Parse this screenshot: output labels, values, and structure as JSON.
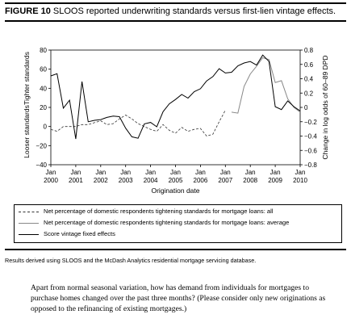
{
  "figure": {
    "label": "FIGURE 10",
    "title": "SLOOS reported underwriting standards versus first-lien vintage effects."
  },
  "chart_data": {
    "type": "line",
    "xlabel": "Origination date",
    "x_ticks": [
      "Jan\n2000",
      "Jan\n2001",
      "Jan\n2002",
      "Jan\n2003",
      "Jan\n2004",
      "Jan\n2005",
      "Jan\n2006",
      "Jan\n2007",
      "Jan\n2008",
      "Jan\n2009",
      "Jan\n2010"
    ],
    "xlim": [
      2000.0,
      2010.0
    ],
    "left_axis": {
      "label_lines": [
        "Looser standards",
        "Tighter standards"
      ],
      "ylim": [
        -40,
        80
      ],
      "ticks": [
        -40,
        -20,
        0,
        20,
        40,
        60,
        80
      ]
    },
    "right_axis": {
      "label": "Change in log odds of 60–89 DPD",
      "ylim": [
        -0.8,
        0.8
      ],
      "ticks": [
        "−0.8",
        "−0.6",
        "−0.4",
        "−0.2",
        "0",
        "0.2",
        "0.4",
        "0.6",
        "0.8"
      ],
      "tick_values": [
        -0.8,
        -0.6,
        -0.4,
        -0.2,
        0.0,
        0.2,
        0.4,
        0.6,
        0.8
      ]
    },
    "grid": false,
    "series": [
      {
        "name": "Net percentage of domestic respondents tightening standards for mortgage loans: all",
        "axis": "left",
        "style": "dashed",
        "color": "#333333",
        "x": [
          2000.0,
          2000.25,
          2000.5,
          2000.75,
          2001.0,
          2001.25,
          2001.5,
          2001.75,
          2002.0,
          2002.25,
          2002.5,
          2002.75,
          2003.0,
          2003.25,
          2003.5,
          2003.75,
          2004.0,
          2004.25,
          2004.5,
          2004.75,
          2005.0,
          2005.25,
          2005.5,
          2005.75,
          2006.0,
          2006.25,
          2006.5,
          2006.75,
          2007.0
        ],
        "y": [
          -3,
          -5,
          0,
          0,
          0,
          2,
          2,
          4,
          6,
          2,
          3,
          8,
          12,
          8,
          3,
          0,
          -3,
          -5,
          2,
          -4,
          -7,
          -1,
          -5,
          -3,
          -2,
          -10,
          -8,
          5,
          17
        ]
      },
      {
        "name": "Net percentage of domestic respondents tightening standards for mortgage loans: average",
        "axis": "left",
        "style": "solid",
        "color": "#888888",
        "x": [
          2007.25,
          2007.5,
          2007.75,
          2008.0,
          2008.25,
          2008.5,
          2008.75,
          2009.0,
          2009.25,
          2009.5,
          2009.75,
          2010.0
        ],
        "y": [
          15,
          14,
          42,
          55,
          63,
          72,
          70,
          46,
          48,
          29,
          20,
          15
        ]
      },
      {
        "name": "Score vintage fixed effects",
        "axis": "right",
        "style": "solid",
        "color": "#000000",
        "x": [
          2000.0,
          2000.25,
          2000.5,
          2000.75,
          2001.0,
          2001.25,
          2001.5,
          2001.75,
          2002.0,
          2002.25,
          2002.5,
          2002.75,
          2003.0,
          2003.25,
          2003.5,
          2003.75,
          2004.0,
          2004.25,
          2004.5,
          2004.75,
          2005.0,
          2005.25,
          2005.5,
          2005.75,
          2006.0,
          2006.25,
          2006.5,
          2006.75,
          2007.0,
          2007.25,
          2007.5,
          2007.75,
          2008.0,
          2008.25,
          2008.5,
          2008.75,
          2009.0,
          2009.25,
          2009.5,
          2009.75,
          2010.0
        ],
        "y": [
          0.44,
          0.47,
          -0.01,
          0.1,
          -0.44,
          0.36,
          -0.2,
          -0.18,
          -0.17,
          -0.14,
          -0.12,
          -0.13,
          -0.29,
          -0.41,
          -0.43,
          -0.23,
          -0.21,
          -0.27,
          -0.06,
          0.05,
          0.11,
          0.18,
          0.13,
          0.22,
          0.26,
          0.37,
          0.43,
          0.54,
          0.48,
          0.49,
          0.58,
          0.62,
          0.64,
          0.59,
          0.73,
          0.64,
          0.01,
          -0.03,
          0.09,
          0.01,
          -0.05
        ]
      }
    ]
  },
  "legend": {
    "items": [
      {
        "label": "Net percentage of domestic respondents tightening standards for mortgage loans: all",
        "style": "dashed",
        "color": "#333333"
      },
      {
        "label": "Net percentage of domestic respondents tightening standards for mortgage loans: average",
        "style": "solid",
        "color": "#888888"
      },
      {
        "label": "Score vintage fixed effects",
        "style": "solid",
        "color": "#000000"
      }
    ]
  },
  "source_note": "Results derived using SLOOS and the McDash Analytics residential mortgage servicing database.",
  "question": "Apart from normal seasonal variation, how has demand from individuals for mortgages to purchase homes changed over the past three months? (Please consider only new originations as opposed to the refinancing of existing mortgages.)"
}
